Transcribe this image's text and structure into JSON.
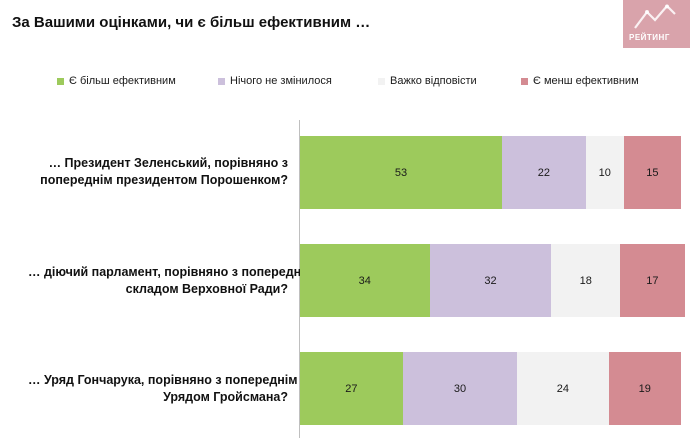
{
  "header": {
    "title": "За Вашими оцінками, чи є більш ефективним …",
    "logo_text": "РЕЙТИНГ"
  },
  "colors": {
    "more_effective": "#9dca5c",
    "unchanged": "#ccc0dc",
    "hard_to_say": "#f2f2f2",
    "less_effective": "#d48b92"
  },
  "chart_data": {
    "type": "bar",
    "orientation": "horizontal",
    "stacked": true,
    "legend_position": "top",
    "grid": false,
    "xlim": [
      0,
      100
    ],
    "categories": [
      [
        "… Президент Зеленський, порівняно з",
        "попереднім президентом Порошенком?"
      ],
      [
        "… діючий парламент, порівняно з попереднім",
        "складом Верховної Ради?"
      ],
      [
        "… Уряд Гончарука, порівняно з попереднім",
        "Урядом Гройсмана?"
      ]
    ],
    "series": [
      {
        "name": "Є більш ефективним",
        "values": [
          53,
          34,
          27
        ]
      },
      {
        "name": "Нічого не змінилося",
        "values": [
          22,
          32,
          30
        ]
      },
      {
        "name": "Важко відповісти",
        "values": [
          10,
          18,
          24
        ]
      },
      {
        "name": "Є менш ефективним",
        "values": [
          15,
          17,
          19
        ]
      }
    ]
  }
}
